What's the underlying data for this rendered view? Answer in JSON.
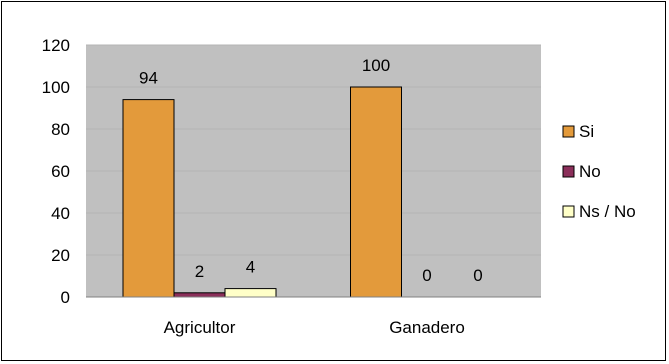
{
  "chart_data": {
    "type": "bar",
    "title": "",
    "xlabel": "",
    "ylabel": "",
    "categories": [
      "Agricultor",
      "Ganadero"
    ],
    "series": [
      {
        "name": "Si",
        "values": [
          94,
          100
        ],
        "color": "#E39A3B"
      },
      {
        "name": "No",
        "values": [
          2,
          0
        ],
        "color": "#8B2F5A"
      },
      {
        "name": "Ns / No",
        "values": [
          4,
          0
        ],
        "color": "#FFFFC8"
      }
    ],
    "data_labels": [
      [
        "94",
        "100"
      ],
      [
        "2",
        "0"
      ],
      [
        "4",
        "0"
      ]
    ],
    "ylim": [
      0,
      120
    ],
    "yticks": [
      0,
      20,
      40,
      60,
      80,
      100,
      120
    ],
    "plot_background": "#C0C0C0",
    "grid": true,
    "legend_position": "right"
  }
}
